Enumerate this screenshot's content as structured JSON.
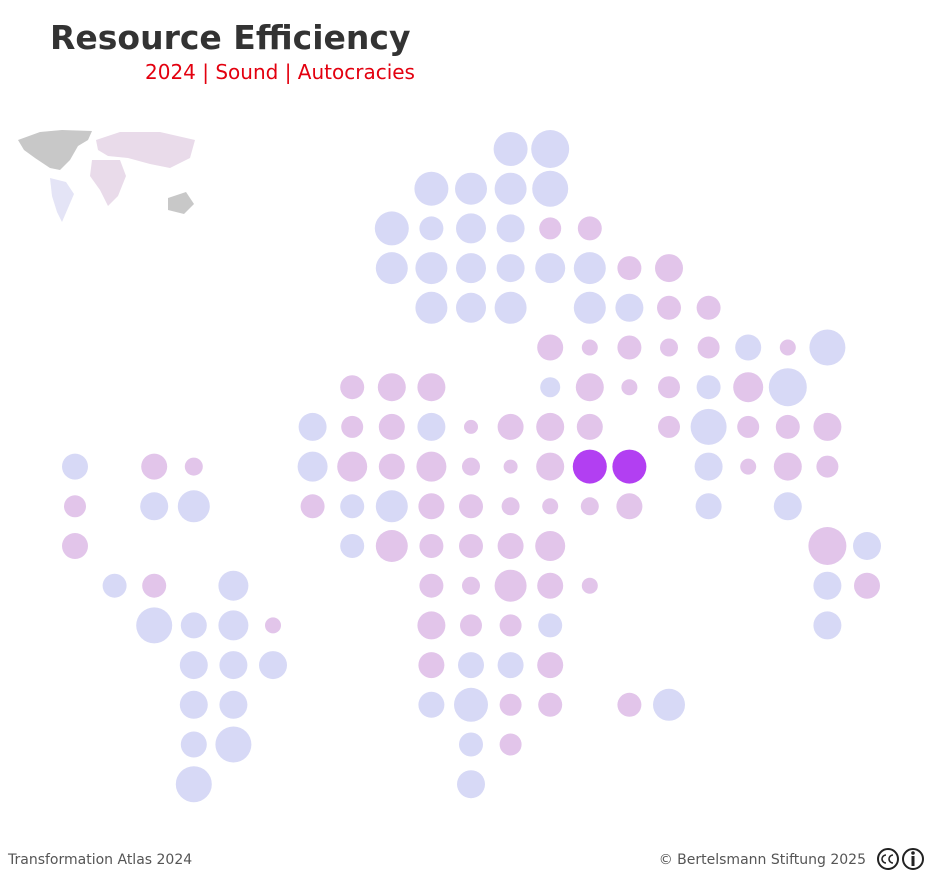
{
  "header": {
    "title": "Resource Efficiency",
    "subtitle": "2024 | Sound | Autocracies"
  },
  "footer": {
    "source": "Transformation Atlas 2024",
    "copyright": "© Bertelsmann Stiftung 2025"
  }
}
